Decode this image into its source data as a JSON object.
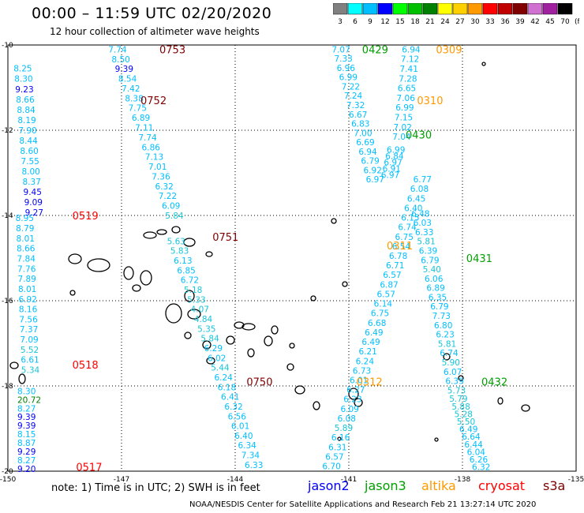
{
  "title": "00:00 – 11:59 UTC 02/20/2020",
  "subtitle": "12 hour collection of altimeter wave heights",
  "footer": "NOAA/NESDIS Center for Satellite Applications and Research     Feb 21 13:27:14 UTC 2020",
  "note": "note:  1) Time is in UTC; 2) SWH is in feet",
  "legend": {
    "unit": "(ft)",
    "bins": [
      {
        "label": "3",
        "color": "#808080"
      },
      {
        "label": "6",
        "color": "#00ffff"
      },
      {
        "label": "9",
        "color": "#00bfff"
      },
      {
        "label": "12",
        "color": "#0000ff"
      },
      {
        "label": "15",
        "color": "#00ff00"
      },
      {
        "label": "18",
        "color": "#00c000"
      },
      {
        "label": "21",
        "color": "#008000"
      },
      {
        "label": "24",
        "color": "#ffff00"
      },
      {
        "label": "27",
        "color": "#ffd000"
      },
      {
        "label": "30",
        "color": "#ff9900"
      },
      {
        "label": "33",
        "color": "#ff0000"
      },
      {
        "label": "36",
        "color": "#c00000"
      },
      {
        "label": "39",
        "color": "#800000"
      },
      {
        "label": "42",
        "color": "#d070d0"
      },
      {
        "label": "45",
        "color": "#a020a0"
      },
      {
        "label": "70",
        "color": "#000000"
      }
    ]
  },
  "satellites": [
    {
      "name": "jason2",
      "color": "#0000ff"
    },
    {
      "name": "jason3",
      "color": "#00a000"
    },
    {
      "name": "altika",
      "color": "#ff9900"
    },
    {
      "name": "cryosat",
      "color": "#ff0000"
    },
    {
      "name": "s3a",
      "color": "#800000"
    }
  ],
  "axes": {
    "lon": [
      {
        "label": "-150",
        "v": -150
      },
      {
        "label": "-147",
        "v": -147
      },
      {
        "label": "-144",
        "v": -144
      },
      {
        "label": "-141",
        "v": -141
      },
      {
        "label": "-138",
        "v": -138
      },
      {
        "label": "-135",
        "v": -135
      }
    ],
    "lat": [
      {
        "label": "-10",
        "v": -10
      },
      {
        "label": "-12",
        "v": -12
      },
      {
        "label": "-14",
        "v": -14
      },
      {
        "label": "-16",
        "v": -16
      },
      {
        "label": "-18",
        "v": -18
      },
      {
        "label": "-20",
        "v": -20
      }
    ]
  },
  "tracks": [
    {
      "time": "0517",
      "sat": "cryosat",
      "time_pos": {
        "lon": -148.2,
        "lat": -19.9
      },
      "values": [
        "9.20",
        "8.27",
        "9.29",
        "8.87",
        "8.15",
        "9.39",
        "9.39",
        "8.27",
        "20.72",
        "8.30"
      ],
      "start": {
        "lon": -149.75,
        "lat": -19.94
      },
      "end": {
        "lon": -149.75,
        "lat": -18.12
      }
    },
    {
      "time": "0518",
      "sat": "cryosat",
      "time_pos": {
        "lon": -148.3,
        "lat": -17.5
      },
      "values": [
        "5.34",
        "6.61",
        "5.52",
        "7.09",
        "7.37",
        "7.56",
        "8.16",
        "6.92",
        "8.01",
        "7.89",
        "7.76",
        "7.84",
        "8.66",
        "8.01",
        "8.79",
        "8.95"
      ],
      "start": {
        "lon": -149.65,
        "lat": -17.62
      },
      "end": {
        "lon": -149.8,
        "lat": -14.06
      }
    },
    {
      "time": "0519",
      "sat": "cryosat",
      "time_pos": {
        "lon": -148.3,
        "lat": -14.0
      },
      "values": [
        "9.27",
        "9.09",
        "9.45",
        "8.37",
        "8.00",
        "7.55",
        "8.60",
        "8.44",
        "7.90",
        "8.19",
        "8.84",
        "8.66",
        "9.23",
        "8.30",
        "8.25"
      ],
      "start": {
        "lon": -149.55,
        "lat": -13.93
      },
      "end": {
        "lon": -149.85,
        "lat": -10.55
      }
    },
    {
      "time": "0750",
      "sat": "s3a",
      "time_pos": {
        "lon": -143.7,
        "lat": -17.9
      },
      "values": [
        "6.33",
        "7.34",
        "6.34",
        "6.40",
        "6.01",
        "6.56",
        "6.32",
        "6.41",
        "6.18",
        "6.24",
        "5.44",
        "6.02",
        "6.29",
        "5.84",
        "5.35",
        "4.84",
        "4.07",
        "5.33",
        "5.18",
        "6.72",
        "6.85",
        "6.13",
        "5.83",
        "5.63"
      ],
      "start": {
        "lon": -143.75,
        "lat": -19.85
      },
      "end": {
        "lon": -145.8,
        "lat": -14.6
      }
    },
    {
      "time": "0751",
      "sat": "s3a",
      "time_pos": {
        "lon": -144.6,
        "lat": -14.5
      },
      "values": [
        "5.84",
        "6.09",
        "7.22",
        "6.32",
        "7.36",
        "7.01",
        "7.13",
        "6.86",
        "7.74",
        "7.11",
        "6.89",
        "7.75",
        "8.38",
        "7.42",
        "8.54",
        "9.39",
        "8.50",
        "7.74"
      ],
      "start": {
        "lon": -145.85,
        "lat": -14.0
      },
      "end": {
        "lon": -147.35,
        "lat": -10.1
      }
    },
    {
      "time": "0752",
      "sat": "s3a",
      "time_pos": {
        "lon": -146.5,
        "lat": -11.3
      },
      "values": []
    },
    {
      "time": "0753",
      "sat": "s3a",
      "time_pos": {
        "lon": -146.0,
        "lat": -10.1
      },
      "values": []
    },
    {
      "time": "0312",
      "sat": "altika",
      "time_pos": {
        "lon": -140.8,
        "lat": -17.9
      },
      "values": [
        "6.70",
        "6.57",
        "6.31",
        "6.16",
        "5.89",
        "6.08",
        "6.09",
        "6.23",
        "6.27",
        "6.01",
        "6.73",
        "6.24",
        "6.21",
        "6.49",
        "6.49",
        "6.68",
        "6.75",
        "6.14",
        "6.57",
        "6.87",
        "6.57",
        "6.71",
        "6.78",
        "6.54",
        "6.75",
        "6.74",
        "6.15",
        "6.40",
        "6.45",
        "6.08",
        "6.77"
      ],
      "start": {
        "lon": -141.7,
        "lat": -19.88
      },
      "end": {
        "lon": -139.3,
        "lat": -13.15
      }
    },
    {
      "time": "0311",
      "sat": "altika",
      "time_pos": {
        "lon": -140.0,
        "lat": -14.7
      },
      "values": []
    },
    {
      "time": "0310",
      "sat": "altika",
      "time_pos": {
        "lon": -139.2,
        "lat": -11.3
      },
      "values": []
    },
    {
      "time": "0309",
      "sat": "altika",
      "time_pos": {
        "lon": -138.7,
        "lat": -10.1
      },
      "values": []
    },
    {
      "time": "0429",
      "sat": "jason3",
      "time_pos": {
        "lon": -140.65,
        "lat": -10.1
      },
      "values": [
        "6.94",
        "7.12",
        "7.41",
        "7.28",
        "6.65",
        "7.06",
        "6.99",
        "7.15",
        "7.02",
        "7.04"
      ],
      "start": {
        "lon": -139.6,
        "lat": -10.1
      },
      "end": {
        "lon": -139.85,
        "lat": -12.15
      }
    },
    {
      "time": "0430",
      "sat": "jason3",
      "time_pos": {
        "lon": -139.5,
        "lat": -12.1
      },
      "values": [
        "6.99",
        "6.84",
        "6.97",
        "6.91",
        "6.97"
      ],
      "start": {
        "lon": -140.0,
        "lat": -12.45
      },
      "end": {
        "lon": -140.15,
        "lat": -13.05
      }
    },
    {
      "time": "0431",
      "sat": "jason3",
      "time_pos": {
        "lon": -137.9,
        "lat": -15.0
      },
      "values": [
        "6.48",
        "6.03",
        "6.33",
        "5.81",
        "6.39",
        "6.79",
        "5.40",
        "6.06",
        "6.89",
        "6.35",
        "6.79",
        "7.73",
        "6.80",
        "6.23",
        "5.81",
        "6.74",
        "5.90",
        "6.07",
        "6.39",
        "5.73"
      ],
      "start": {
        "lon": -139.35,
        "lat": -13.95
      },
      "end": {
        "lon": -138.4,
        "lat": -18.1
      }
    },
    {
      "time": "0432",
      "sat": "jason3",
      "time_pos": {
        "lon": -137.5,
        "lat": -17.9
      },
      "values": [
        "5.79",
        "5.88",
        "5.28",
        "5.50",
        "6.49",
        "6.64",
        "6.44",
        "6.04",
        "6.26",
        "6.32"
      ],
      "start": {
        "lon": -138.35,
        "lat": -18.3
      },
      "end": {
        "lon": -137.75,
        "lat": -19.9
      }
    },
    {
      "time": "",
      "sat": "altika",
      "time_pos": null,
      "values": [
        "7.07",
        "7.33",
        "6.96",
        "6.99",
        "7.22",
        "7.24",
        "7.32",
        "6.67",
        "6.83",
        "7.00",
        "6.69",
        "6.94",
        "6.79",
        "6.92",
        "6.97"
      ],
      "start": {
        "lon": -141.45,
        "lat": -10.1
      },
      "end": {
        "lon": -140.55,
        "lat": -13.15
      }
    }
  ]
}
